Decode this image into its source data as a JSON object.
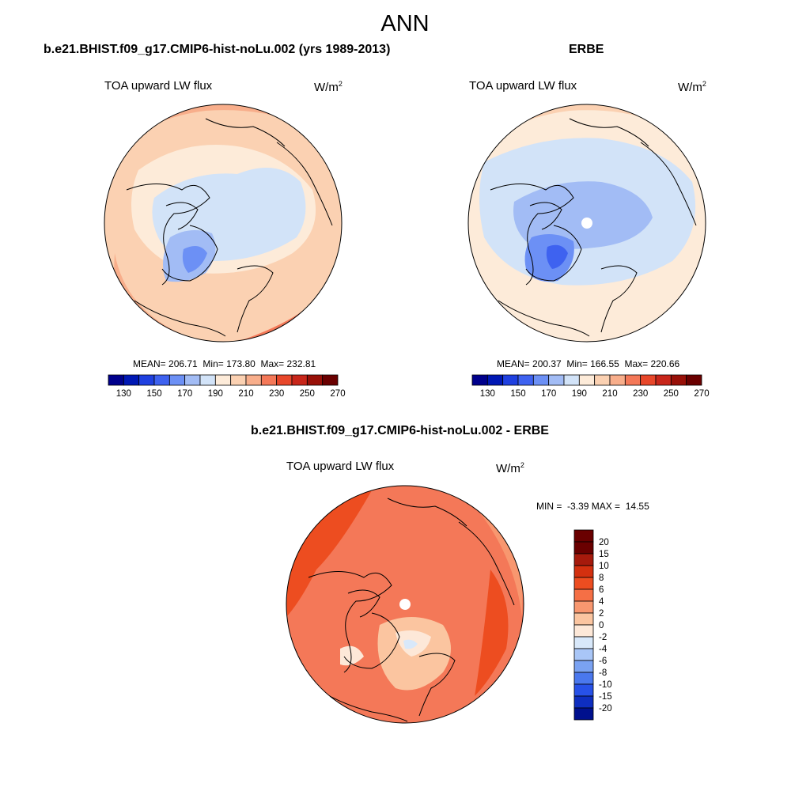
{
  "title": "ANN",
  "panels": [
    {
      "case": "b.e21.BHIST.f09_g17.CMIP6-hist-noLu.002 (yrs 1989-2013)",
      "variable": "TOA upward LW flux",
      "units": "W/m",
      "units_sup": "2",
      "mean_label": "MEAN=",
      "mean": "206.71",
      "min_label": "Min=",
      "min": "173.80",
      "max_label": "Max=",
      "max": "232.81"
    },
    {
      "case": "ERBE",
      "variable": "TOA upward LW flux",
      "units": "W/m",
      "units_sup": "2",
      "mean_label": "MEAN=",
      "mean": "200.37",
      "min_label": "Min=",
      "min": "166.55",
      "max_label": "Max=",
      "max": "220.66"
    },
    {
      "case": "b.e21.BHIST.f09_g17.CMIP6-hist-noLu.002 - ERBE",
      "variable": "TOA upward LW flux",
      "units": "W/m",
      "units_sup": "2",
      "min_label": "MIN =",
      "min": "-3.39",
      "max_label": "MAX =",
      "max": "14.55"
    }
  ],
  "colorbar_abs": {
    "ticks": [
      "130",
      "150",
      "170",
      "190",
      "210",
      "230",
      "250",
      "270"
    ],
    "colors": [
      "#00008c",
      "#0018b4",
      "#1f40e0",
      "#3e62f0",
      "#6c90f5",
      "#a2bcf5",
      "#d2e3f8",
      "#fdebd9",
      "#fbd1b2",
      "#f8ae8b",
      "#f47858",
      "#e8472a",
      "#c8261a",
      "#981008",
      "#6a0000"
    ]
  },
  "colorbar_diff": {
    "ticks": [
      "20",
      "15",
      "10",
      "8",
      "6",
      "4",
      "2",
      "0",
      "-2",
      "-4",
      "-6",
      "-8",
      "-10",
      "-15",
      "-20"
    ],
    "colors": [
      "#6a0000",
      "#a61a0c",
      "#d3300f",
      "#ed4d20",
      "#f56f45",
      "#f8976f",
      "#fbc5a0",
      "#fde8d8",
      "#d8e8fa",
      "#a9c6f7",
      "#7aa2f2",
      "#4a78ee",
      "#2751e8",
      "#0e2ec0",
      "#00108e"
    ]
  },
  "chart_data": [
    {
      "type": "heatmap",
      "title": "b.e21.BHIST.f09_g17.CMIP6-hist-noLu.002 (yrs 1989-2013)",
      "projection": "polar-stereographic north",
      "variable": "TOA upward LW flux",
      "units": "W/m2",
      "mean": 206.71,
      "min": 173.8,
      "max": 232.81,
      "levels": [
        130,
        140,
        150,
        160,
        170,
        180,
        190,
        200,
        210,
        220,
        230,
        240,
        250,
        260,
        270
      ]
    },
    {
      "type": "heatmap",
      "title": "ERBE",
      "projection": "polar-stereographic north",
      "variable": "TOA upward LW flux",
      "units": "W/m2",
      "mean": 200.37,
      "min": 166.55,
      "max": 220.66,
      "levels": [
        130,
        140,
        150,
        160,
        170,
        180,
        190,
        200,
        210,
        220,
        230,
        240,
        250,
        260,
        270
      ]
    },
    {
      "type": "heatmap",
      "title": "b.e21.BHIST.f09_g17.CMIP6-hist-noLu.002 - ERBE",
      "projection": "polar-stereographic north",
      "variable": "TOA upward LW flux",
      "units": "W/m2",
      "min": -3.39,
      "max": 14.55,
      "levels": [
        -20,
        -15,
        -10,
        -8,
        -6,
        -4,
        -2,
        0,
        2,
        4,
        6,
        8,
        10,
        15,
        20
      ]
    }
  ]
}
